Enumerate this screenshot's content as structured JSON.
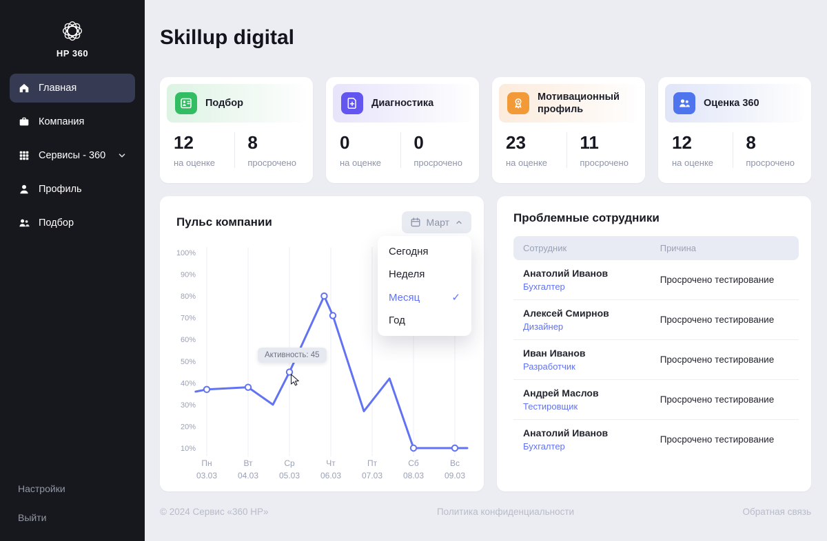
{
  "sidebar": {
    "logo_title": "HP 360",
    "items": [
      {
        "label": "Главная",
        "active": true
      },
      {
        "label": "Компания",
        "active": false
      },
      {
        "label": "Сервисы - 360",
        "active": false,
        "chevron": true
      },
      {
        "label": "Профиль",
        "active": false
      },
      {
        "label": "Подбор",
        "active": false
      }
    ],
    "footer_items": [
      {
        "label": "Настройки"
      },
      {
        "label": "Выйти"
      }
    ]
  },
  "header": {
    "title": "Skillup digital"
  },
  "stat_cards": [
    {
      "label": "Подбор",
      "header_bg": "#ddf3e4",
      "accent": "#33bd63",
      "left": {
        "value": "12",
        "caption": "на оценке"
      },
      "right": {
        "value": "8",
        "caption": "просрочено"
      }
    },
    {
      "label": "Диагностика",
      "header_bg": "#e7e4fb",
      "accent": "#6355f0",
      "left": {
        "value": "0",
        "caption": "на оценке"
      },
      "right": {
        "value": "0",
        "caption": "просрочено"
      }
    },
    {
      "label": "Мотивационный профиль",
      "header_bg": "#fcebdc",
      "accent": "#f29a38",
      "left": {
        "value": "23",
        "caption": "на оценке"
      },
      "right": {
        "value": "11",
        "caption": "просрочено"
      }
    },
    {
      "label": "Оценка 360",
      "header_bg": "#e0e5f8",
      "accent": "#4e74ee",
      "left": {
        "value": "12",
        "caption": "на оценке"
      },
      "right": {
        "value": "8",
        "caption": "просрочено"
      }
    }
  ],
  "pulse": {
    "title": "Пульс компании",
    "period_button": {
      "label": "Март"
    },
    "dropdown": {
      "items": [
        {
          "label": "Сегодня",
          "selected": false
        },
        {
          "label": "Неделя",
          "selected": false
        },
        {
          "label": "Месяц",
          "selected": true
        },
        {
          "label": "Год",
          "selected": false
        }
      ]
    }
  },
  "chart_data": {
    "type": "line",
    "title": "Пульс компании",
    "series_name": "Активность",
    "unit": "%",
    "line_color": "#6172f3",
    "grid": "vertical-only",
    "y_range": [
      10,
      100
    ],
    "y_ticks": [
      "100%",
      "90%",
      "80%",
      "70%",
      "60%",
      "50%",
      "40%",
      "30%",
      "20%",
      "10%"
    ],
    "x_categories": [
      {
        "day": "Пн",
        "date": "03.03"
      },
      {
        "day": "Вт",
        "date": "04.03"
      },
      {
        "day": "Ср",
        "date": "05.03"
      },
      {
        "day": "Чт",
        "date": "06.03"
      },
      {
        "day": "Пт",
        "date": "07.03"
      },
      {
        "day": "Сб",
        "date": "08.03"
      },
      {
        "day": "Вс",
        "date": "09.03"
      }
    ],
    "points": [
      {
        "x": -0.27,
        "y": 36,
        "dot": false
      },
      {
        "x": 0,
        "y": 37,
        "dot": true
      },
      {
        "x": 1,
        "y": 38,
        "dot": true
      },
      {
        "x": 1.6,
        "y": 30,
        "dot": false
      },
      {
        "x": 2,
        "y": 45,
        "dot": true,
        "active": true
      },
      {
        "x": 2.84,
        "y": 80,
        "dot": true
      },
      {
        "x": 3.05,
        "y": 71,
        "dot": true
      },
      {
        "x": 3.8,
        "y": 27,
        "dot": false
      },
      {
        "x": 4.42,
        "y": 42,
        "dot": false
      },
      {
        "x": 5,
        "y": 10,
        "dot": true
      },
      {
        "x": 6,
        "y": 10,
        "dot": true
      },
      {
        "x": 6.3,
        "y": 10,
        "dot": false
      }
    ],
    "tooltip": {
      "label": "Активность: 45"
    }
  },
  "problem_employees": {
    "title": "Проблемные сотрудники",
    "columns": [
      "Сотрудник",
      "Причина"
    ],
    "rows": [
      {
        "name": "Анатолий Иванов",
        "role": "Бухгалтер",
        "reason": "Просрочено тестирование"
      },
      {
        "name": "Алексей Смирнов",
        "role": "Дизайнер",
        "reason": "Просрочено тестирование"
      },
      {
        "name": "Иван Иванов",
        "role": "Разработчик",
        "reason": "Просрочено тестирование"
      },
      {
        "name": "Андрей Маслов",
        "role": "Тестировщик",
        "reason": "Просрочено тестирование"
      },
      {
        "name": "Анатолий Иванов",
        "role": "Бухгалтер",
        "reason": "Просрочено тестирование"
      }
    ]
  },
  "footer": {
    "copyright": "© 2024 Сервис «360 HP»",
    "privacy": "Политика конфиденциальности",
    "feedback": "Обратная связь"
  },
  "icons": {
    "check": "✓"
  },
  "colors": {
    "accent": "#6172f3",
    "sidebar_bg": "#17181d",
    "page_bg": "#ecedf2"
  }
}
